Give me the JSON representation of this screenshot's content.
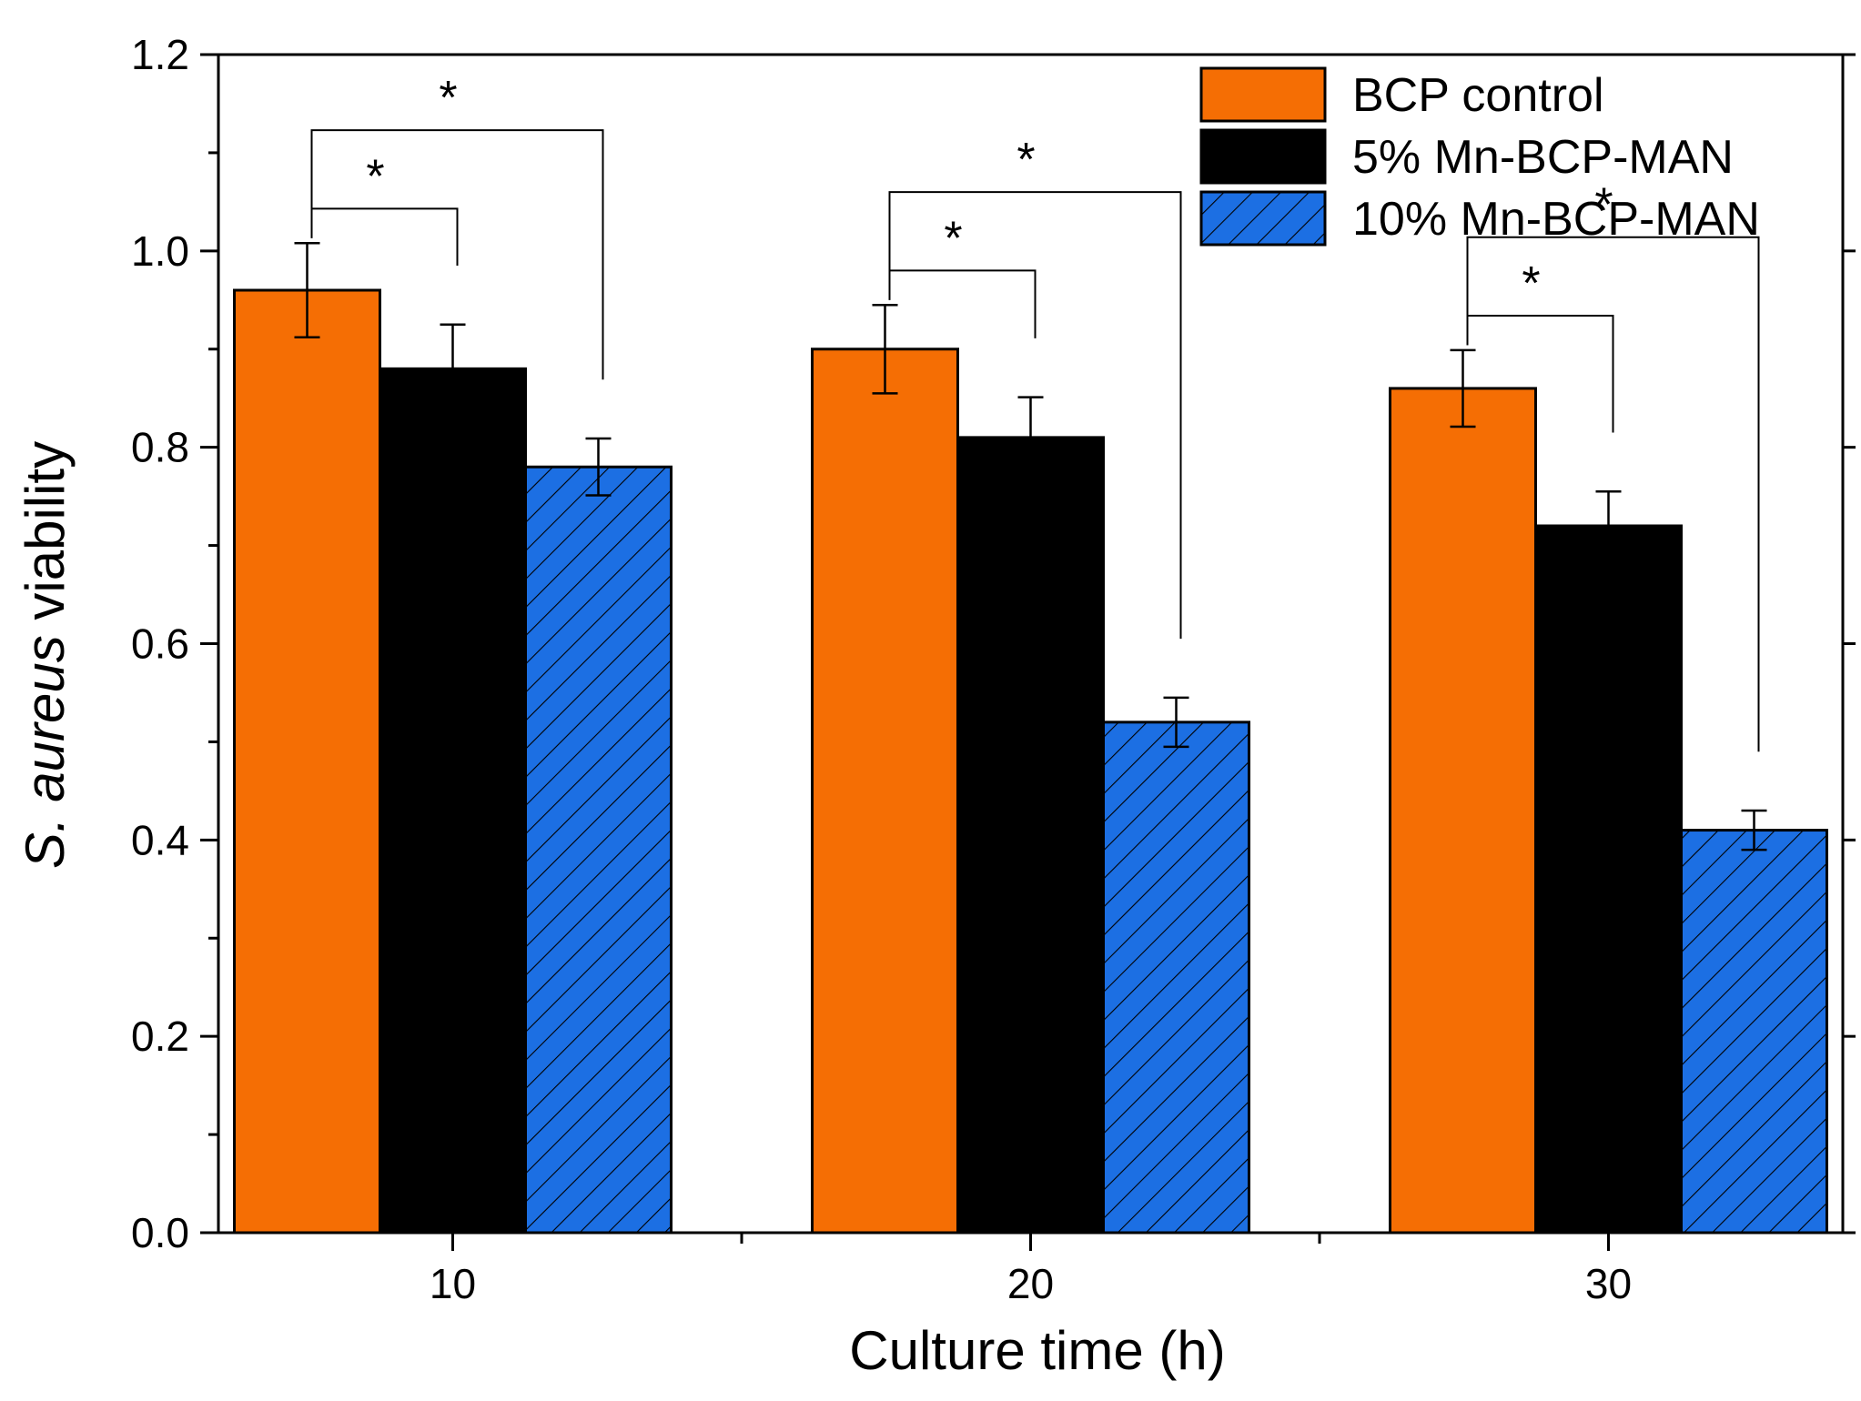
{
  "chart_data": {
    "type": "bar",
    "title": "",
    "xlabel": "Culture time (h)",
    "ylabel_italic": "S. aureus",
    "ylabel_rest": " viability",
    "categories": [
      "10",
      "20",
      "30"
    ],
    "ylim": [
      0.0,
      1.2
    ],
    "yticks": [
      "0.0",
      "0.2",
      "0.4",
      "0.6",
      "0.8",
      "1.0",
      "1.2"
    ],
    "series": [
      {
        "name": "BCP control",
        "color": "#f56e04",
        "pattern": "solid",
        "values": [
          0.96,
          0.9,
          0.86
        ],
        "errors": [
          0.048,
          0.045,
          0.039
        ]
      },
      {
        "name": "5% Mn-BCP-MAN",
        "color": "#000000",
        "pattern": "solid",
        "values": [
          0.88,
          0.81,
          0.72
        ],
        "errors": [
          0.045,
          0.041,
          0.035
        ]
      },
      {
        "name": "10% Mn-BCP-MAN",
        "color": "#1c6fe3",
        "pattern": "hatch",
        "values": [
          0.78,
          0.52,
          0.41
        ],
        "errors": [
          0.029,
          0.025,
          0.02
        ]
      }
    ],
    "significance": [
      {
        "group": 0,
        "from": 0,
        "to": 1,
        "label": "*"
      },
      {
        "group": 0,
        "from": 0,
        "to": 2,
        "label": "*"
      },
      {
        "group": 1,
        "from": 0,
        "to": 1,
        "label": "*"
      },
      {
        "group": 1,
        "from": 0,
        "to": 2,
        "label": "*"
      },
      {
        "group": 2,
        "from": 0,
        "to": 1,
        "label": "*"
      },
      {
        "group": 2,
        "from": 0,
        "to": 2,
        "label": "*"
      }
    ],
    "legend_position": "top-right"
  }
}
